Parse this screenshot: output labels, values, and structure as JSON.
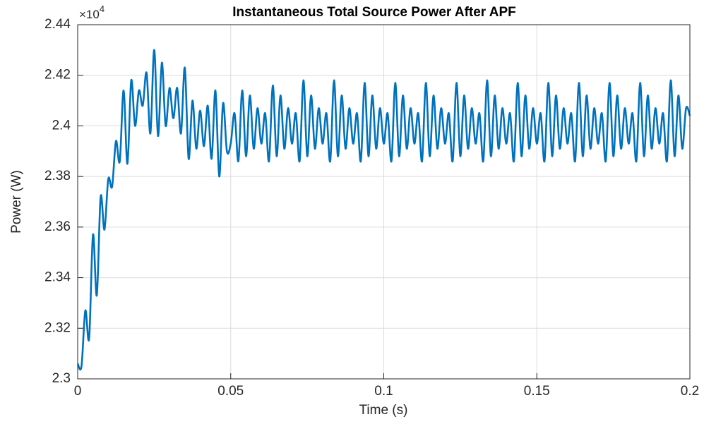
{
  "chart_data": {
    "type": "line",
    "title": "Instantaneous Total Source Power After APF",
    "x_label": "Time (s)",
    "y_label": "Power (W)",
    "y_multiplier": {
      "base": "×10",
      "exponent": "4"
    },
    "xlim": [
      0,
      0.2
    ],
    "ylim": [
      2.3,
      2.44
    ],
    "xticks": [
      0,
      0.05,
      0.1,
      0.15,
      0.2
    ],
    "yticks": [
      2.3,
      2.32,
      2.34,
      2.36,
      2.38,
      2.4,
      2.42,
      2.44
    ],
    "grid": true,
    "x": [
      0,
      0.00125,
      0.0025,
      0.00375,
      0.005,
      0.00625,
      0.0075,
      0.00875,
      0.01,
      0.01125,
      0.0125,
      0.01375,
      0.015,
      0.01625,
      0.0175,
      0.01875,
      0.02,
      0.02125,
      0.0225,
      0.02375,
      0.025,
      0.02625,
      0.0275,
      0.02875,
      0.03,
      0.03125,
      0.0325,
      0.03375,
      0.035,
      0.03625,
      0.0375,
      0.03875,
      0.04,
      0.04125,
      0.0425,
      0.04375,
      0.045,
      0.04625,
      0.0475,
      0.04875,
      0.05,
      0.05125,
      0.0525,
      0.05375,
      0.055,
      0.05625,
      0.0575,
      0.05875,
      0.06,
      0.06125,
      0.0625,
      0.06375,
      0.065,
      0.06625,
      0.0675,
      0.06875,
      0.07,
      0.07125,
      0.0725,
      0.07375,
      0.075,
      0.07625,
      0.0775,
      0.07875,
      0.08,
      0.08125,
      0.0825,
      0.08375,
      0.085,
      0.08625,
      0.0875,
      0.08875,
      0.09,
      0.09125,
      0.0925,
      0.09375,
      0.095,
      0.09625,
      0.0975,
      0.09875,
      0.1,
      0.10125,
      0.1025,
      0.10375,
      0.105,
      0.10625,
      0.1075,
      0.10875,
      0.11,
      0.11125,
      0.1125,
      0.11375,
      0.115,
      0.11625,
      0.1175,
      0.11875,
      0.12,
      0.12125,
      0.1225,
      0.12375,
      0.125,
      0.12625,
      0.1275,
      0.12875,
      0.13,
      0.13125,
      0.1325,
      0.13375,
      0.135,
      0.13625,
      0.1375,
      0.13875,
      0.14,
      0.14125,
      0.1425,
      0.14375,
      0.145,
      0.14625,
      0.1475,
      0.14875,
      0.15,
      0.15125,
      0.1525,
      0.15375,
      0.155,
      0.15625,
      0.1575,
      0.15875,
      0.16,
      0.16125,
      0.1625,
      0.16375,
      0.165,
      0.16625,
      0.1675,
      0.16875,
      0.17,
      0.17125,
      0.1725,
      0.17375,
      0.175,
      0.17625,
      0.1775,
      0.17875,
      0.18,
      0.18125,
      0.1825,
      0.18375,
      0.185,
      0.18625,
      0.1875,
      0.18875,
      0.19,
      0.19125,
      0.1925,
      0.19375,
      0.195,
      0.19625,
      0.1975,
      0.19875,
      0.2
    ],
    "series": [
      {
        "name": "Power",
        "color": "#0072bd",
        "values": [
          2.306,
          2.305,
          2.327,
          2.316,
          2.357,
          2.333,
          2.372,
          2.359,
          2.379,
          2.376,
          2.394,
          2.386,
          2.414,
          2.385,
          2.418,
          2.4,
          2.414,
          2.408,
          2.421,
          2.397,
          2.43,
          2.396,
          2.425,
          2.4,
          2.415,
          2.403,
          2.415,
          2.397,
          2.423,
          2.387,
          2.41,
          2.391,
          2.406,
          2.392,
          2.408,
          2.387,
          2.414,
          2.38,
          2.409,
          2.39,
          2.393,
          2.405,
          2.386,
          2.414,
          2.388,
          2.412,
          2.391,
          2.407,
          2.393,
          2.405,
          2.386,
          2.416,
          2.388,
          2.412,
          2.391,
          2.407,
          2.393,
          2.405,
          2.386,
          2.418,
          2.388,
          2.412,
          2.391,
          2.407,
          2.393,
          2.405,
          2.386,
          2.418,
          2.388,
          2.412,
          2.391,
          2.407,
          2.393,
          2.405,
          2.386,
          2.417,
          2.388,
          2.412,
          2.391,
          2.407,
          2.393,
          2.405,
          2.386,
          2.417,
          2.388,
          2.412,
          2.391,
          2.407,
          2.393,
          2.405,
          2.386,
          2.417,
          2.388,
          2.412,
          2.391,
          2.407,
          2.393,
          2.405,
          2.386,
          2.417,
          2.388,
          2.412,
          2.391,
          2.407,
          2.393,
          2.405,
          2.386,
          2.418,
          2.388,
          2.412,
          2.391,
          2.407,
          2.393,
          2.405,
          2.386,
          2.417,
          2.388,
          2.412,
          2.391,
          2.407,
          2.393,
          2.405,
          2.386,
          2.417,
          2.388,
          2.412,
          2.391,
          2.407,
          2.393,
          2.405,
          2.386,
          2.417,
          2.388,
          2.412,
          2.391,
          2.407,
          2.393,
          2.405,
          2.386,
          2.417,
          2.388,
          2.412,
          2.391,
          2.407,
          2.393,
          2.405,
          2.386,
          2.417,
          2.388,
          2.412,
          2.391,
          2.407,
          2.393,
          2.405,
          2.386,
          2.418,
          2.388,
          2.412,
          2.391,
          2.407,
          2.404
        ]
      }
    ]
  }
}
